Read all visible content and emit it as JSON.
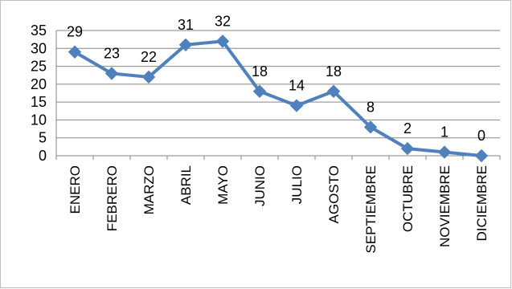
{
  "chart_data": {
    "type": "line",
    "title": "",
    "xlabel": "",
    "ylabel": "",
    "categories": [
      "ENERO",
      "FEBRERO",
      "MARZO",
      "ABRIL",
      "MAYO",
      "JUNIO",
      "JULIO",
      "AGOSTO",
      "SEPTIEMBRE",
      "OCTUBRE",
      "NOVIEMBRE",
      "DICIEMBRE"
    ],
    "series": [
      {
        "values": [
          29,
          23,
          22,
          31,
          32,
          18,
          14,
          18,
          8,
          2,
          1,
          0
        ],
        "color": "#4f81bd",
        "marker": "diamond"
      }
    ],
    "ylim": [
      0,
      35
    ],
    "yticks": [
      "0",
      "5",
      "10",
      "15",
      "20",
      "25",
      "30",
      "35"
    ],
    "grid": true,
    "grid_color": "#868686",
    "data_labels": true,
    "legend": "none"
  }
}
